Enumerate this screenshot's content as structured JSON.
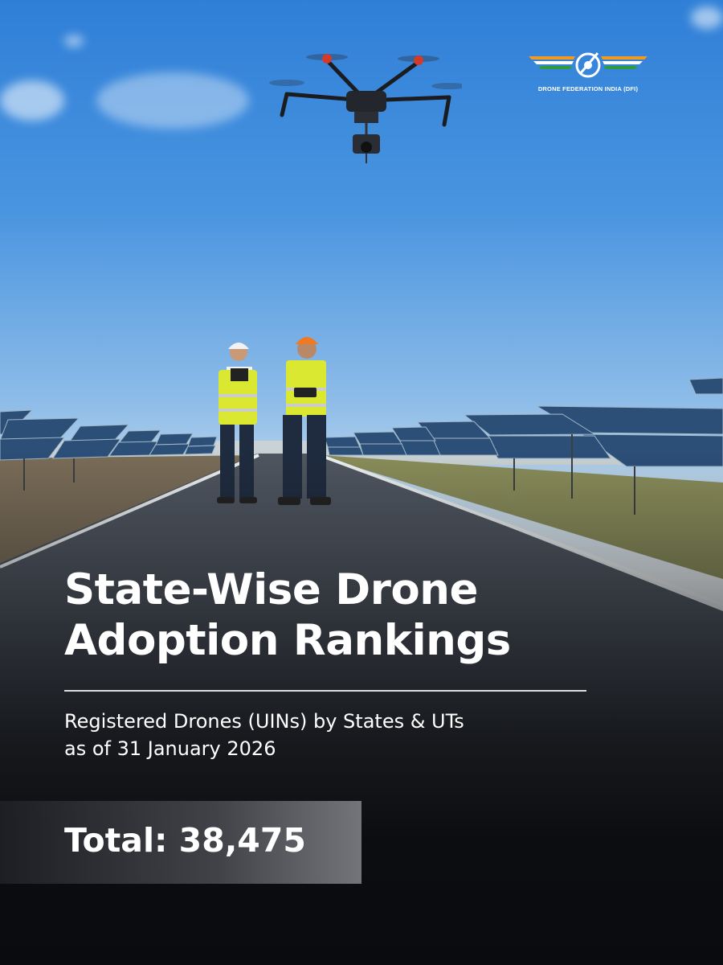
{
  "logo": {
    "org_name": "DRONE FEDERATION INDIA (DFI)"
  },
  "headline": {
    "line1": "State-Wise Drone",
    "line2": "Adoption Rankings"
  },
  "subtitle": {
    "line1": "Registered Drones (UINs) by States & UTs",
    "line2": "as of 31 January 2026"
  },
  "total": {
    "text": "Total: 38,475"
  },
  "colors": {
    "sky_top": "#2f7fd8",
    "saffron": "#f39a1e",
    "green": "#2e9b3e",
    "background_dark": "#0a0b0e"
  },
  "icons": [
    "dfi-logo-icon",
    "drone-icon"
  ]
}
